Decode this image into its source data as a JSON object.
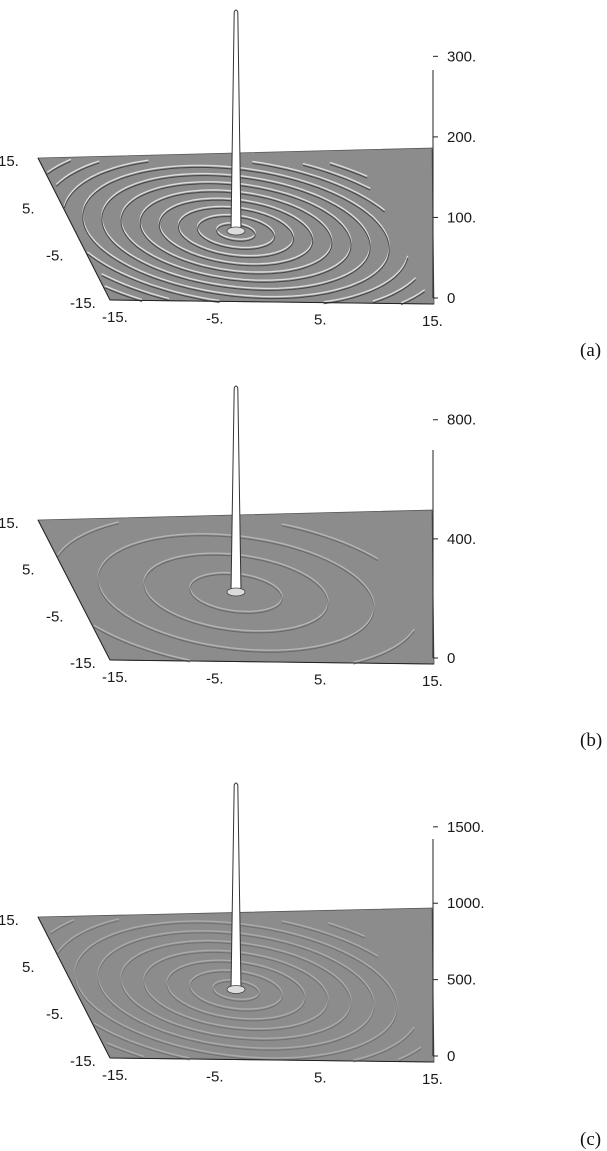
{
  "chart_data": [
    {
      "type": "surface",
      "panel_label": "(a)",
      "x_ticks": [
        "-15.",
        "-5.",
        "5.",
        "15."
      ],
      "y_ticks": [
        "-15.",
        "-5.",
        "5.",
        "15."
      ],
      "z_ticks": [
        "0",
        "100.",
        "200.",
        "300."
      ],
      "x_range": [
        -15,
        15
      ],
      "y_range": [
        -15,
        15
      ],
      "z_range": [
        0,
        360
      ],
      "peak": {
        "x": 0,
        "y": 0,
        "z": 360
      },
      "ripple_amplitude": 0.9,
      "ring_count": 12,
      "grid": false
    },
    {
      "type": "surface",
      "panel_label": "(b)",
      "x_ticks": [
        "-15.",
        "-5.",
        "5.",
        "15."
      ],
      "y_ticks": [
        "-15.",
        "-5.",
        "5.",
        "15."
      ],
      "z_ticks": [
        "0",
        "400.",
        "800."
      ],
      "x_range": [
        -15,
        15
      ],
      "y_range": [
        -15,
        15
      ],
      "z_range": [
        0,
        920
      ],
      "peak": {
        "x": 0,
        "y": 0,
        "z": 920
      },
      "ripple_amplitude": 0.45,
      "ring_count": 5,
      "grid": false
    },
    {
      "type": "surface",
      "panel_label": "(c)",
      "x_ticks": [
        "-15.",
        "-5.",
        "5.",
        "15."
      ],
      "y_ticks": [
        "-15.",
        "-5.",
        "5.",
        "15."
      ],
      "z_ticks": [
        "0",
        "500.",
        "1000.",
        "1500."
      ],
      "x_range": [
        -15,
        15
      ],
      "y_range": [
        -15,
        15
      ],
      "z_range": [
        0,
        1800
      ],
      "peak": {
        "x": 0,
        "y": 0,
        "z": 1800
      },
      "ripple_amplitude": 0.35,
      "ring_count": 10,
      "grid": false
    }
  ],
  "colors": {
    "surface": "#8c8c8c",
    "ridge_light": "#e6e6e6",
    "ridge_dark": "#3c3c3c",
    "peak": "#ffffff",
    "axis": "#222222"
  }
}
